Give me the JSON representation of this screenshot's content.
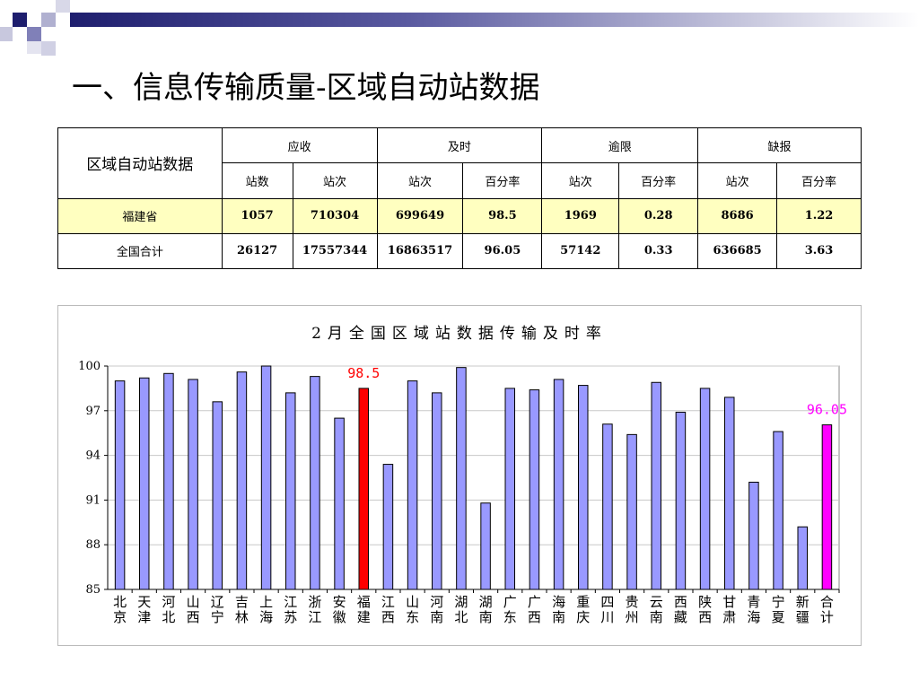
{
  "slide": {
    "title": "一、信息传输质量-区域自动站数据"
  },
  "table": {
    "corner": "区域自动站数据",
    "groups": [
      "应收",
      "及时",
      "逾限",
      "缺报"
    ],
    "subheaders": [
      "站数",
      "站次",
      "站次",
      "百分率",
      "站次",
      "百分率",
      "站次",
      "百分率"
    ],
    "rows": [
      {
        "name": "福建省",
        "cells": [
          "1057",
          "710304",
          "699649",
          "98.5",
          "1969",
          "0.28",
          "8686",
          "1.22"
        ]
      },
      {
        "name": "全国合计",
        "cells": [
          "26127",
          "17557344",
          "16863517",
          "96.05",
          "57142",
          "0.33",
          "636685",
          "3.63"
        ]
      }
    ]
  },
  "colors": {
    "bar": "#9999ff",
    "highlight_fujian": "#ff0000",
    "highlight_total": "#ff00ff",
    "table_highlight_row": "#ffffc0"
  },
  "chart_data": {
    "type": "bar",
    "title": "2月全国区域站数据传输及时率",
    "ylim": [
      85,
      100
    ],
    "yticks": [
      "85",
      "88",
      "91",
      "94",
      "97",
      "100"
    ],
    "grid": true,
    "categories": [
      "北京",
      "天津",
      "河北",
      "山西",
      "辽宁",
      "吉林",
      "上海",
      "江苏",
      "浙江",
      "安徽",
      "福建",
      "江西",
      "山东",
      "河南",
      "湖北",
      "湖南",
      "广东",
      "广西",
      "海南",
      "重庆",
      "四川",
      "贵州",
      "云南",
      "西藏",
      "陕西",
      "甘肃",
      "青海",
      "宁夏",
      "新疆",
      "合计"
    ],
    "values": [
      99.0,
      99.2,
      99.5,
      99.1,
      97.6,
      99.6,
      100.0,
      98.2,
      99.3,
      96.5,
      98.5,
      93.4,
      99.0,
      98.2,
      99.9,
      90.8,
      98.5,
      98.4,
      99.1,
      98.7,
      96.1,
      95.4,
      98.9,
      96.9,
      98.5,
      97.9,
      92.2,
      95.6,
      89.2,
      96.05
    ],
    "annotations": [
      {
        "category": "福建",
        "text": "98.5"
      },
      {
        "category": "合计",
        "text": "96.05"
      }
    ]
  }
}
